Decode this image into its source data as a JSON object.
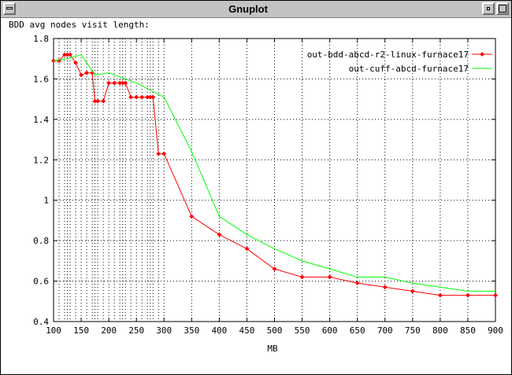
{
  "window": {
    "title": "Gnuplot"
  },
  "chart_data": {
    "type": "line",
    "title": "BDD avg nodes visit length:",
    "xlabel": "MB",
    "ylabel": "",
    "xlim": [
      100,
      900
    ],
    "ylim": [
      0.4,
      1.8
    ],
    "x_ticks": [
      100,
      150,
      200,
      250,
      300,
      350,
      400,
      450,
      500,
      550,
      600,
      650,
      700,
      750,
      800,
      850,
      900
    ],
    "x_tick_labels": [
      "100",
      "150",
      "200",
      "250",
      "300",
      "350",
      "400",
      "450",
      "500",
      "550",
      "600",
      "650",
      "700",
      "750",
      "800",
      "850",
      "900"
    ],
    "y_ticks": [
      0.4,
      0.6,
      0.8,
      1,
      1.2,
      1.4,
      1.6,
      1.8
    ],
    "y_tick_labels": [
      "0.4",
      "0.6",
      "0.8",
      "1",
      "1.2",
      "1.4",
      "1.6",
      "1.8"
    ],
    "x_minor_grid": [
      110,
      120,
      125,
      130,
      140,
      160,
      170,
      175,
      180,
      190,
      210,
      220,
      225,
      230,
      240,
      260,
      270,
      275,
      280,
      290
    ],
    "grid": true,
    "legend_position": "top-right",
    "series": [
      {
        "name": "out-bdd-abcd-r2-linux-furnace17",
        "color": "#ff0000",
        "marker": "diamond",
        "x": [
          100,
          110,
          120,
          125,
          130,
          140,
          150,
          160,
          170,
          175,
          180,
          190,
          200,
          210,
          220,
          225,
          230,
          240,
          250,
          260,
          270,
          275,
          280,
          290,
          300,
          350,
          400,
          450,
          500,
          550,
          600,
          650,
          700,
          750,
          800,
          850,
          900
        ],
        "y": [
          1.69,
          1.69,
          1.72,
          1.72,
          1.72,
          1.68,
          1.62,
          1.63,
          1.63,
          1.49,
          1.49,
          1.49,
          1.58,
          1.58,
          1.58,
          1.58,
          1.58,
          1.51,
          1.51,
          1.51,
          1.51,
          1.51,
          1.51,
          1.23,
          1.23,
          0.92,
          0.83,
          0.76,
          0.66,
          0.62,
          0.62,
          0.59,
          0.57,
          0.55,
          0.53,
          0.53,
          0.53
        ]
      },
      {
        "name": "out-cuff-abcd-furnace17",
        "color": "#00ff00",
        "marker": "none",
        "x": [
          100,
          125,
          150,
          175,
          200,
          250,
          300,
          350,
          400,
          450,
          500,
          550,
          600,
          650,
          700,
          750,
          800,
          850,
          900
        ],
        "y": [
          1.69,
          1.7,
          1.72,
          1.62,
          1.63,
          1.58,
          1.51,
          1.24,
          0.92,
          0.83,
          0.76,
          0.7,
          0.66,
          0.62,
          0.62,
          0.59,
          0.57,
          0.55,
          0.55
        ]
      }
    ]
  }
}
